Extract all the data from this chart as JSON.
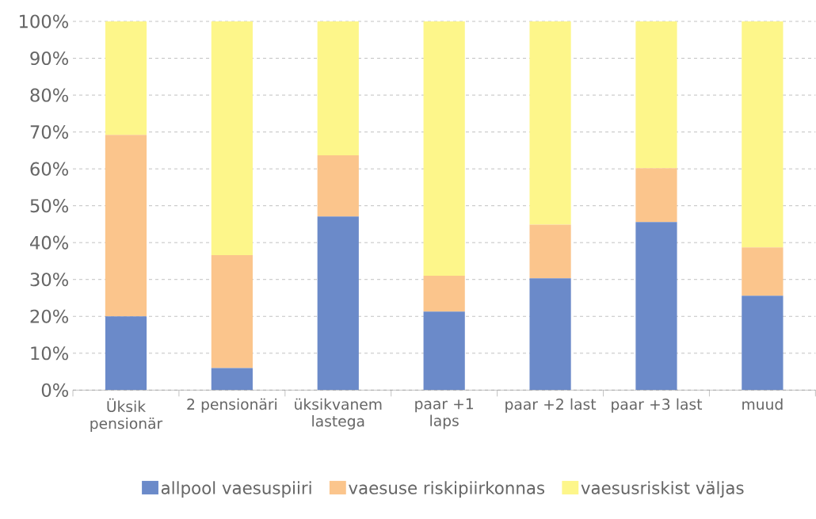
{
  "chart_data": {
    "type": "bar",
    "stacked": true,
    "categories": [
      "Üksik pensionär",
      "2 pensionäri",
      "üksikvanem lastega",
      "paar +1 laps",
      "paar +2 last",
      "paar +3 last",
      "muud"
    ],
    "series": [
      {
        "name": "allpool vaesuspiiri",
        "color": "#6b8ac9",
        "values": [
          20.0,
          6.0,
          47.1,
          21.3,
          30.3,
          45.6,
          25.6
        ]
      },
      {
        "name": "vaesuse riskipiirkonnas",
        "color": "#fbc58c",
        "values": [
          49.2,
          30.6,
          16.6,
          9.7,
          14.6,
          14.6,
          13.1
        ]
      },
      {
        "name": "vaesusriskist väljas",
        "color": "#fdf68a",
        "values": [
          30.8,
          63.4,
          36.3,
          69.0,
          55.1,
          39.8,
          61.3
        ]
      }
    ],
    "ylim": [
      0,
      100
    ],
    "yticks": [
      {
        "value": 0,
        "label": "0%"
      },
      {
        "value": 10,
        "label": "10%"
      },
      {
        "value": 20,
        "label": "20%"
      },
      {
        "value": 30,
        "label": "30%"
      },
      {
        "value": 40,
        "label": "40%"
      },
      {
        "value": 50,
        "label": "50%"
      },
      {
        "value": 60,
        "label": "60%"
      },
      {
        "value": 70,
        "label": "70%"
      },
      {
        "value": 80,
        "label": "80%"
      },
      {
        "value": 90,
        "label": "90%"
      },
      {
        "value": 100,
        "label": "100%"
      }
    ],
    "grid": "y",
    "legend": "bottom"
  }
}
